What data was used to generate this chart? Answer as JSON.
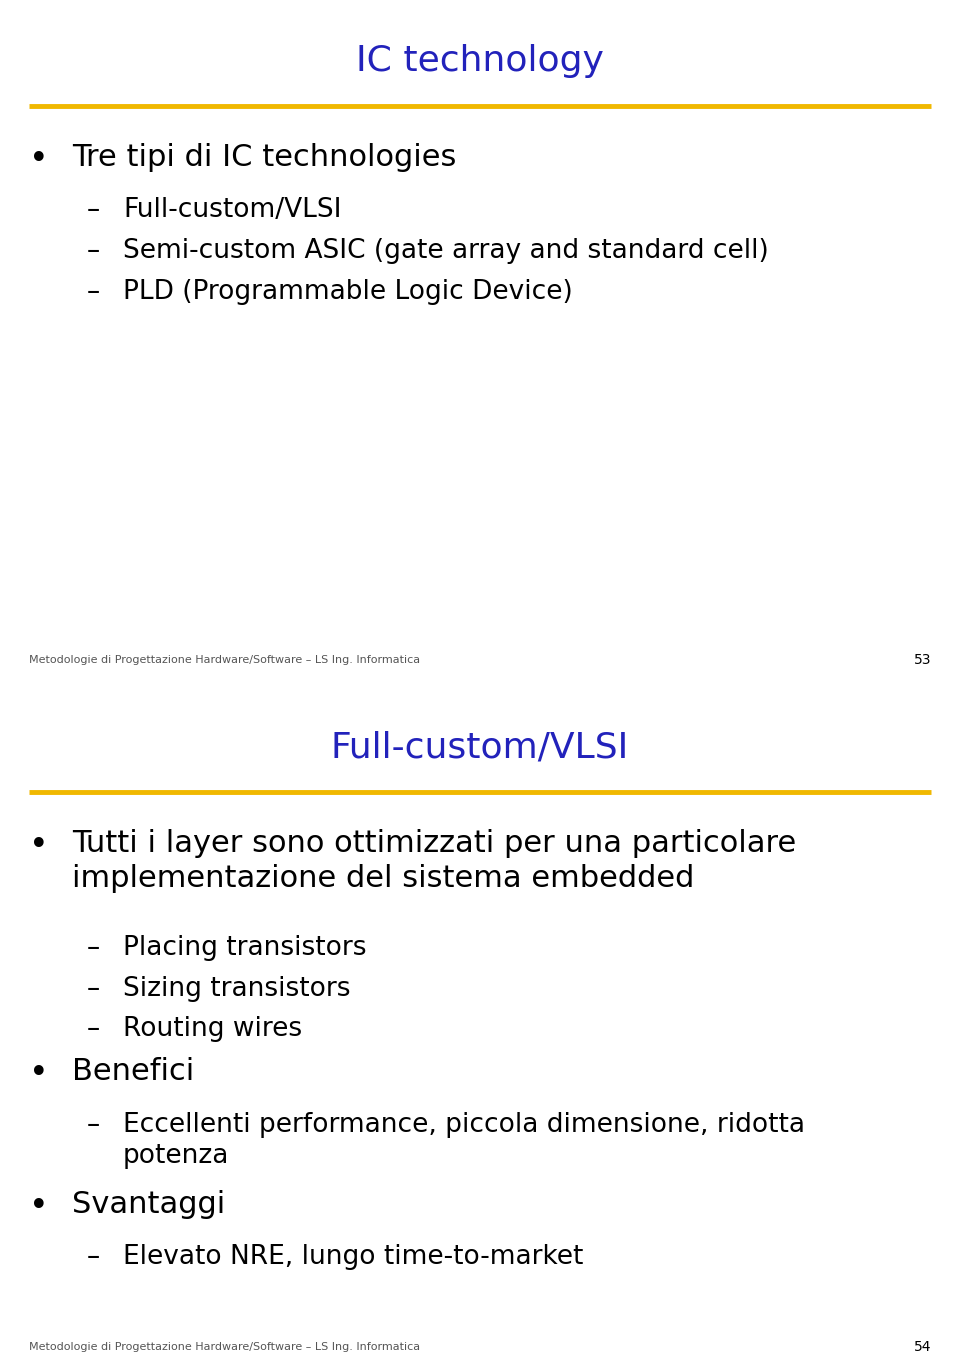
{
  "slide1": {
    "title": "IC technology",
    "title_color": "#2222BB",
    "line_color": "#F0B800",
    "content": [
      {
        "level": 1,
        "text": "Tre tipi di IC technologies"
      },
      {
        "level": 2,
        "text": "Full-custom/VLSI"
      },
      {
        "level": 2,
        "text": "Semi-custom ASIC (gate array and standard cell)"
      },
      {
        "level": 2,
        "text": "PLD (Programmable Logic Device)"
      }
    ],
    "footer": "Metodologie di Progettazione Hardware/Software – LS Ing. Informatica",
    "page": "53"
  },
  "slide2": {
    "title": "Full-custom/VLSI",
    "title_color": "#2222BB",
    "line_color": "#F0B800",
    "content": [
      {
        "level": 1,
        "text": "Tutti i layer sono ottimizzati per una particolare\nimplementazione del sistema embedded"
      },
      {
        "level": 2,
        "text": "Placing transistors"
      },
      {
        "level": 2,
        "text": "Sizing transistors"
      },
      {
        "level": 2,
        "text": "Routing wires"
      },
      {
        "level": 1,
        "text": "Benefici"
      },
      {
        "level": 2,
        "text": "Eccellenti performance, piccola dimensione, ridotta\npotenza"
      },
      {
        "level": 1,
        "text": "Svantaggi"
      },
      {
        "level": 2,
        "text": "Elevato NRE, lungo time-to-market"
      }
    ],
    "footer": "Metodologie di Progettazione Hardware/Software – LS Ing. Informatica",
    "page": "54"
  },
  "bg_color": "#ffffff",
  "text_color": "#000000",
  "footer_color": "#555555",
  "divider_color": "#cccccc",
  "title_fontsize": 26,
  "bullet1_fontsize": 22,
  "bullet2_fontsize": 19,
  "footer_fontsize": 8,
  "page_fontsize": 10,
  "fig_width": 9.6,
  "fig_height": 13.67
}
